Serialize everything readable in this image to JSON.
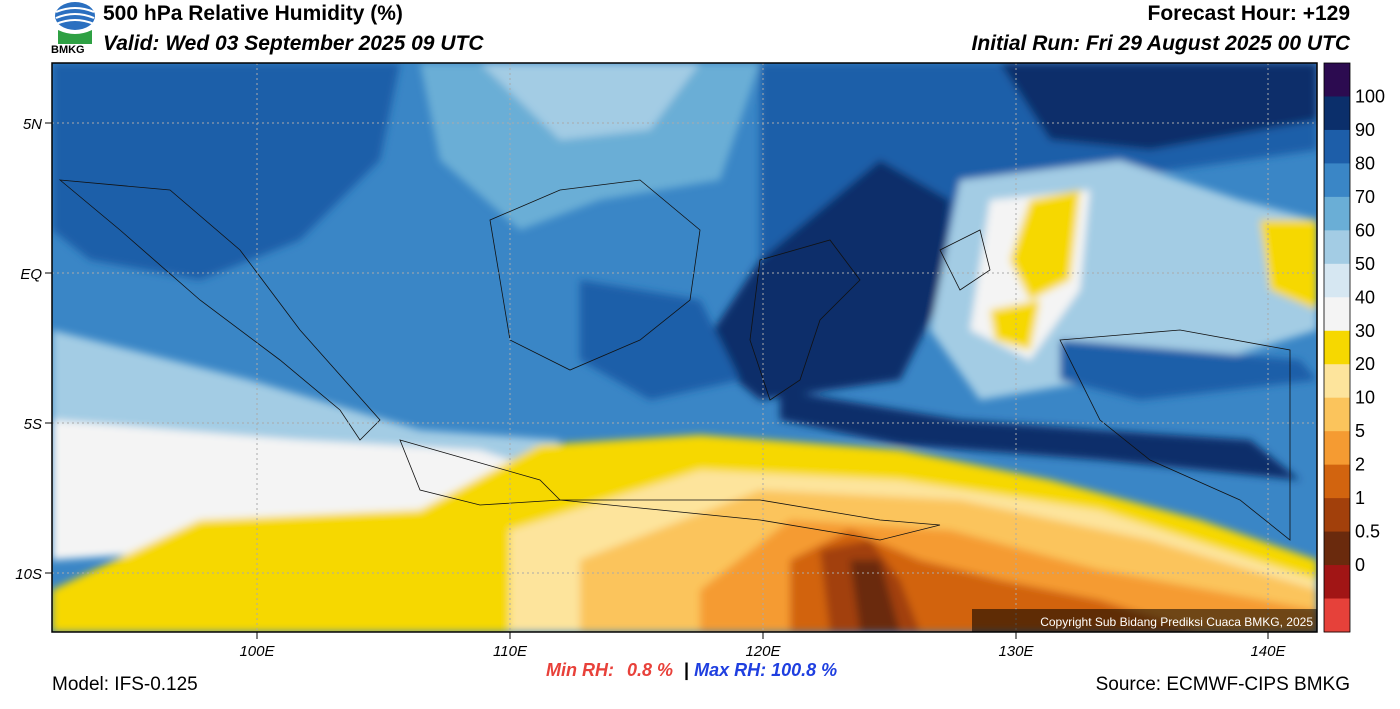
{
  "header": {
    "logo": "BMKG",
    "title": "500 hPa Relative Humidity (%)",
    "valid": "Valid: Wed 03 September 2025 09 UTC",
    "forecast_hour": "Forecast Hour: +129",
    "initial_run": "Initial Run: Fri 29 August 2025 00 UTC"
  },
  "map": {
    "lat_labels": [
      "5N",
      "EQ",
      "5S",
      "10S"
    ],
    "lon_labels": [
      "100E",
      "110E",
      "120E",
      "130E",
      "140E"
    ],
    "copyright": "Copyright Sub Bidang Prediksi Cuaca BMKG, 2025"
  },
  "colorbar": {
    "labels": [
      "100",
      "90",
      "80",
      "70",
      "60",
      "50",
      "40",
      "30",
      "20",
      "10",
      "5",
      "2",
      "1",
      "0.5",
      "0"
    ],
    "colors": [
      "#2c0b50",
      "#0b2f6b",
      "#1d5ea9",
      "#3a86c6",
      "#6aaed6",
      "#a3cce4",
      "#d6e7f2",
      "#f4f4f4",
      "#f6d800",
      "#fde49c",
      "#fbc45c",
      "#f59b32",
      "#d2640f",
      "#a2400b",
      "#6a2a0d",
      "#a11515",
      "#e6413a"
    ]
  },
  "footer": {
    "model": "Model: IFS-0.125",
    "min_rh_label": "Min RH:",
    "min_rh": "0.8 %",
    "separator": "|",
    "max_rh": "Max RH: 100.8 %",
    "source": "Source: ECMWF-CIPS BMKG"
  }
}
